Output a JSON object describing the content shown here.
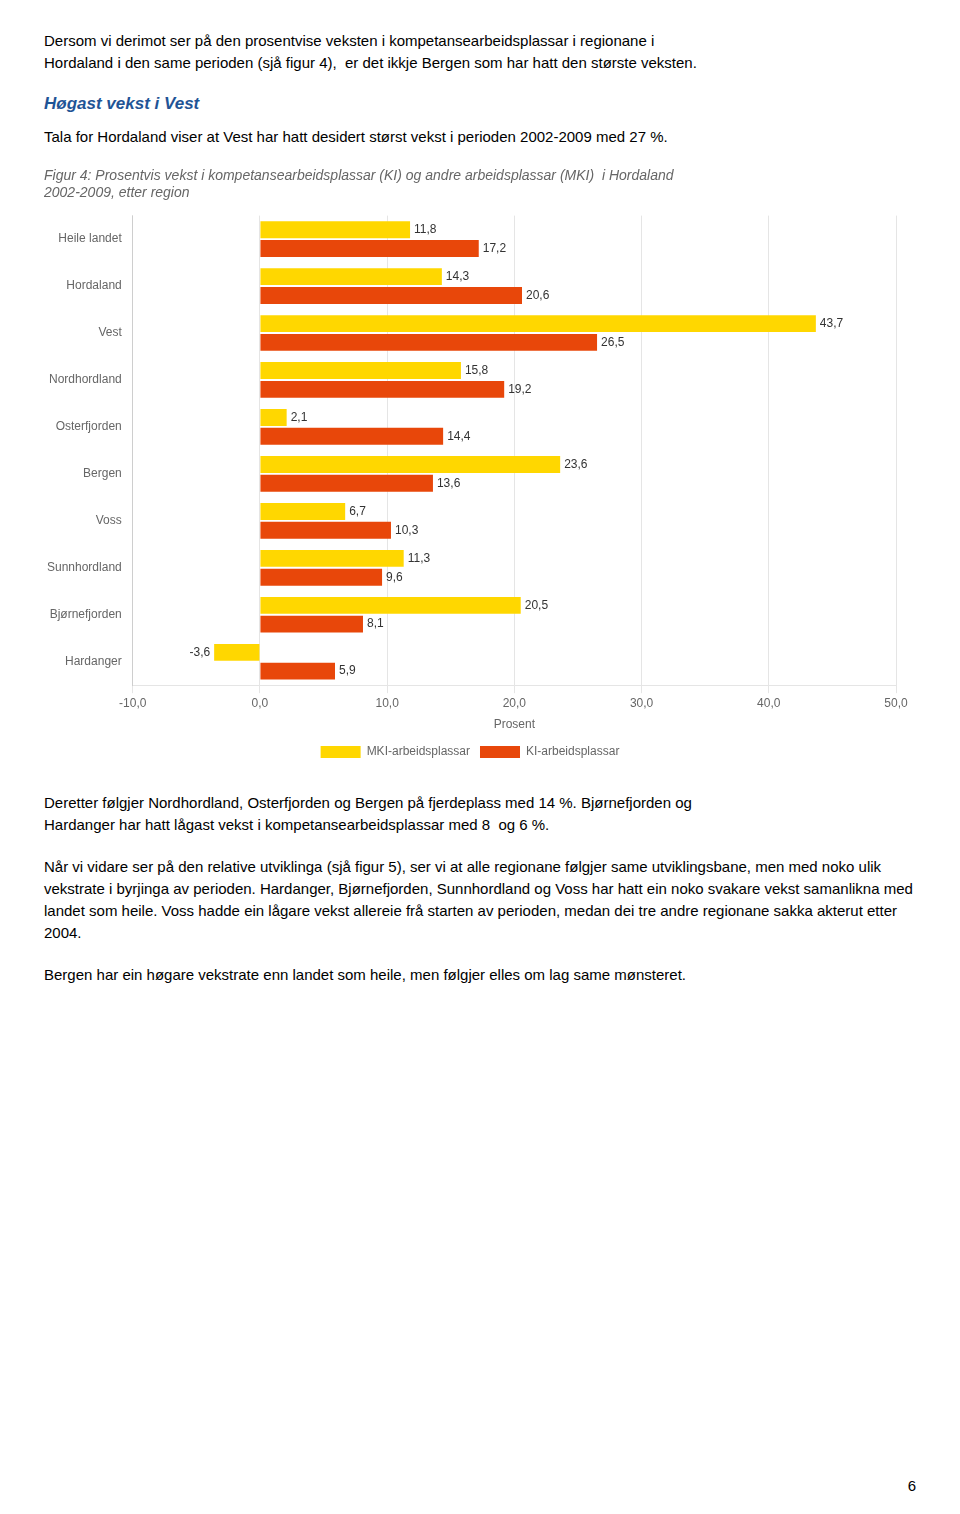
{
  "before": [
    {
      "text": [
        "Dersom vi derimot ser på den prosentvise veksten i kompetansearbeidsplassar i regionane i",
        "Hordaland i den same perioden (sjå figur 4),  er det ikkje Bergen som har hatt den største veksten."
      ]
    },
    {
      "heading": "Høgast vekst i Vest"
    },
    {
      "text": [
        "Tala for Hordaland viser at Vest har hatt desidert størst vekst i perioden 2002-2009 med 27 %."
      ]
    }
  ],
  "chart_data": {
    "type": "bar",
    "orientation": "horizontal",
    "title": [
      "Figur 4: Prosentvis vekst i kompetansearbeidsplassar (KI) og andre arbeidsplassar (MKI)  i Hordaland",
      "2002-2009, etter region"
    ],
    "categories": [
      "Heile landet",
      "Hordaland",
      "Vest",
      "Nordhordland",
      "Osterfjorden",
      "Bergen",
      "Voss",
      "Sunnhordland",
      "Bjørnefjorden",
      "Hardanger"
    ],
    "series": [
      {
        "name": "MKI-arbeidsplassar",
        "color": "#FFD700",
        "values": [
          11.8,
          14.3,
          43.7,
          15.8,
          2.1,
          23.6,
          6.7,
          11.3,
          20.5,
          -3.6
        ],
        "value_labels": [
          "11,8",
          "14,3",
          "43,7",
          "15,8",
          "2,1",
          "23,6",
          "6,7",
          "11,3",
          "20,5",
          "-3,6"
        ]
      },
      {
        "name": "KI-arbeidsplassar",
        "color": "#E8470A",
        "values": [
          17.2,
          20.6,
          26.5,
          19.2,
          14.4,
          13.6,
          10.3,
          9.6,
          8.1,
          5.9
        ],
        "value_labels": [
          "17,2",
          "20,6",
          "26,5",
          "19,2",
          "14,4",
          "13,6",
          "10,3",
          "9,6",
          "8,1",
          "5,9"
        ]
      }
    ],
    "xlabel": "Prosent",
    "xlim": [
      -10.0,
      50.0
    ],
    "xticks": [
      {
        "value": -10.0,
        "label": "-10,0"
      },
      {
        "value": 0.0,
        "label": "0,0"
      },
      {
        "value": 10.0,
        "label": "10,0"
      },
      {
        "value": 20.0,
        "label": "20,0"
      },
      {
        "value": 30.0,
        "label": "30,0"
      },
      {
        "value": 40.0,
        "label": "40,0"
      },
      {
        "value": 50.0,
        "label": "50,0"
      }
    ],
    "grid": true,
    "legend": "bottom",
    "data_labels": true
  },
  "after": [
    {
      "text": [
        "Deretter følgjer Nordhordland, Osterfjorden og Bergen på fjerdeplass med 14 %. Bjørnefjorden og",
        "Hardanger har hatt lågast vekst i kompetansearbeidsplassar med 8  og 6 %."
      ]
    },
    {
      "text": [
        "Når vi vidare ser på den relative utviklinga (sjå figur 5), ser vi at alle regionane følgjer same utviklingsbane, men med noko ulik vekstrate i byrjinga av perioden. Hardanger, Bjørnefjorden, Sunnhordland og Voss har hatt ein noko svakare vekst samanlikna med landet som heile. Voss hadde ein lågare vekst allereie frå starten av perioden, medan dei tre andre regionane sakka akterut etter 2004."
      ]
    },
    {
      "text": [
        "Bergen har ein høgare vekstrate enn landet som heile, men følgjer elles om lag same mønsteret."
      ]
    }
  ],
  "page_number": "6"
}
